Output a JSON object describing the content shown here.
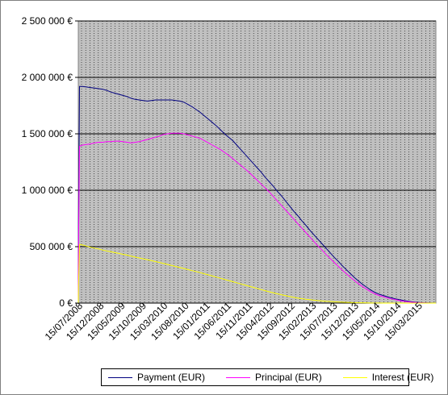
{
  "chart_data": {
    "type": "line",
    "title": "",
    "xlabel": "",
    "ylabel": "",
    "ylim": [
      0,
      2500000
    ],
    "yticks": [
      0,
      500000,
      1000000,
      1500000,
      2000000,
      2500000
    ],
    "ytick_labels": [
      "0 €",
      "500 000 €",
      "1 000 000 €",
      "1 500 000 €",
      "2 000 000 €",
      "2 500 000 €"
    ],
    "xtick_labels": [
      "15/07/2008",
      "15/12/2008",
      "15/05/2009",
      "15/10/2009",
      "15/03/2010",
      "15/08/2010",
      "15/01/2011",
      "15/06/2011",
      "15/11/2011",
      "15/04/2012",
      "15/09/2012",
      "15/02/2013",
      "15/07/2013",
      "15/12/2013",
      "15/05/2014",
      "15/10/2014",
      "15/03/2015"
    ],
    "x": [
      0,
      0.05,
      0.3,
      1,
      2,
      3,
      4,
      5,
      6,
      7,
      8,
      9,
      10,
      11,
      12,
      13,
      14,
      15,
      16,
      17,
      18,
      19,
      20,
      21,
      22,
      23,
      24,
      25,
      26,
      27,
      28,
      29,
      30,
      31,
      32,
      33,
      34,
      35,
      36,
      37,
      38,
      39,
      40,
      41,
      42,
      43,
      44,
      45,
      46,
      47,
      48,
      49,
      50,
      51,
      52,
      53,
      54,
      55,
      56,
      57,
      58,
      59,
      60,
      61,
      62,
      63,
      64,
      65,
      66,
      67,
      68,
      69,
      70,
      71,
      72,
      73,
      74,
      75,
      76,
      77,
      78,
      79,
      80,
      81,
      82,
      83,
      84,
      85,
      86,
      87,
      88
    ],
    "grid": true,
    "legend_position": "bottom",
    "colors": {
      "plot_bg": "#c0c0c0",
      "gridline": "#000000"
    },
    "series": [
      {
        "name": "Payment (EUR)",
        "color": "#000080",
        "values": [
          0,
          700000,
          1920000,
          1920000,
          1915000,
          1910000,
          1905000,
          1900000,
          1895000,
          1885000,
          1870000,
          1860000,
          1850000,
          1840000,
          1830000,
          1815000,
          1805000,
          1800000,
          1795000,
          1790000,
          1795000,
          1800000,
          1800000,
          1800000,
          1800000,
          1800000,
          1795000,
          1790000,
          1780000,
          1760000,
          1740000,
          1715000,
          1690000,
          1660000,
          1630000,
          1600000,
          1570000,
          1535000,
          1500000,
          1470000,
          1440000,
          1400000,
          1360000,
          1320000,
          1280000,
          1240000,
          1200000,
          1160000,
          1115000,
          1075000,
          1035000,
          990000,
          950000,
          905000,
          860000,
          815000,
          775000,
          730000,
          690000,
          645000,
          605000,
          565000,
          525000,
          485000,
          445000,
          405000,
          370000,
          330000,
          295000,
          260000,
          225000,
          195000,
          165000,
          140000,
          115000,
          95000,
          80000,
          68000,
          57000,
          47000,
          38000,
          30000,
          23000,
          17000,
          12000,
          8000,
          5000,
          3000,
          1500,
          500,
          0
        ]
      },
      {
        "name": "Principal (EUR)",
        "color": "#ff00ff",
        "values": [
          0,
          500000,
          1390000,
          1400000,
          1405000,
          1410000,
          1420000,
          1425000,
          1425000,
          1430000,
          1430000,
          1435000,
          1435000,
          1430000,
          1425000,
          1420000,
          1425000,
          1430000,
          1440000,
          1450000,
          1460000,
          1470000,
          1480000,
          1495000,
          1500000,
          1505000,
          1505000,
          1505000,
          1500000,
          1490000,
          1480000,
          1470000,
          1460000,
          1440000,
          1420000,
          1400000,
          1380000,
          1360000,
          1335000,
          1310000,
          1280000,
          1250000,
          1220000,
          1190000,
          1160000,
          1125000,
          1090000,
          1055000,
          1020000,
          985000,
          945000,
          905000,
          865000,
          825000,
          785000,
          745000,
          705000,
          665000,
          625000,
          585000,
          545000,
          505000,
          470000,
          430000,
          395000,
          360000,
          325000,
          290000,
          260000,
          228000,
          198000,
          170000,
          145000,
          122000,
          100000,
          82000,
          68000,
          57000,
          47000,
          38000,
          30000,
          23000,
          17000,
          12000,
          8000,
          5000,
          3000,
          1500,
          500,
          200,
          0
        ]
      },
      {
        "name": "Interest (EUR)",
        "color": "#ffff00",
        "values": [
          0,
          150000,
          520000,
          515000,
          505000,
          495000,
          487000,
          480000,
          470000,
          462000,
          455000,
          447000,
          440000,
          432000,
          425000,
          416000,
          408000,
          400000,
          392000,
          385000,
          377000,
          368000,
          360000,
          351000,
          342000,
          333000,
          324000,
          315000,
          306000,
          297000,
          288000,
          279000,
          270000,
          260000,
          250000,
          240000,
          230000,
          220000,
          210000,
          200000,
          190000,
          180000,
          170000,
          160000,
          150000,
          140000,
          130000,
          120000,
          110000,
          100000,
          91000,
          82000,
          74000,
          66000,
          58000,
          51000,
          45000,
          39000,
          34000,
          30000,
          26000,
          22000,
          19000,
          16000,
          14000,
          12000,
          10000,
          8000,
          6500,
          5200,
          4000,
          3100,
          2400,
          1800,
          1300,
          900,
          600,
          400,
          250,
          150,
          80,
          40,
          20,
          10,
          5,
          0,
          0,
          0,
          0,
          0,
          0
        ]
      }
    ]
  }
}
